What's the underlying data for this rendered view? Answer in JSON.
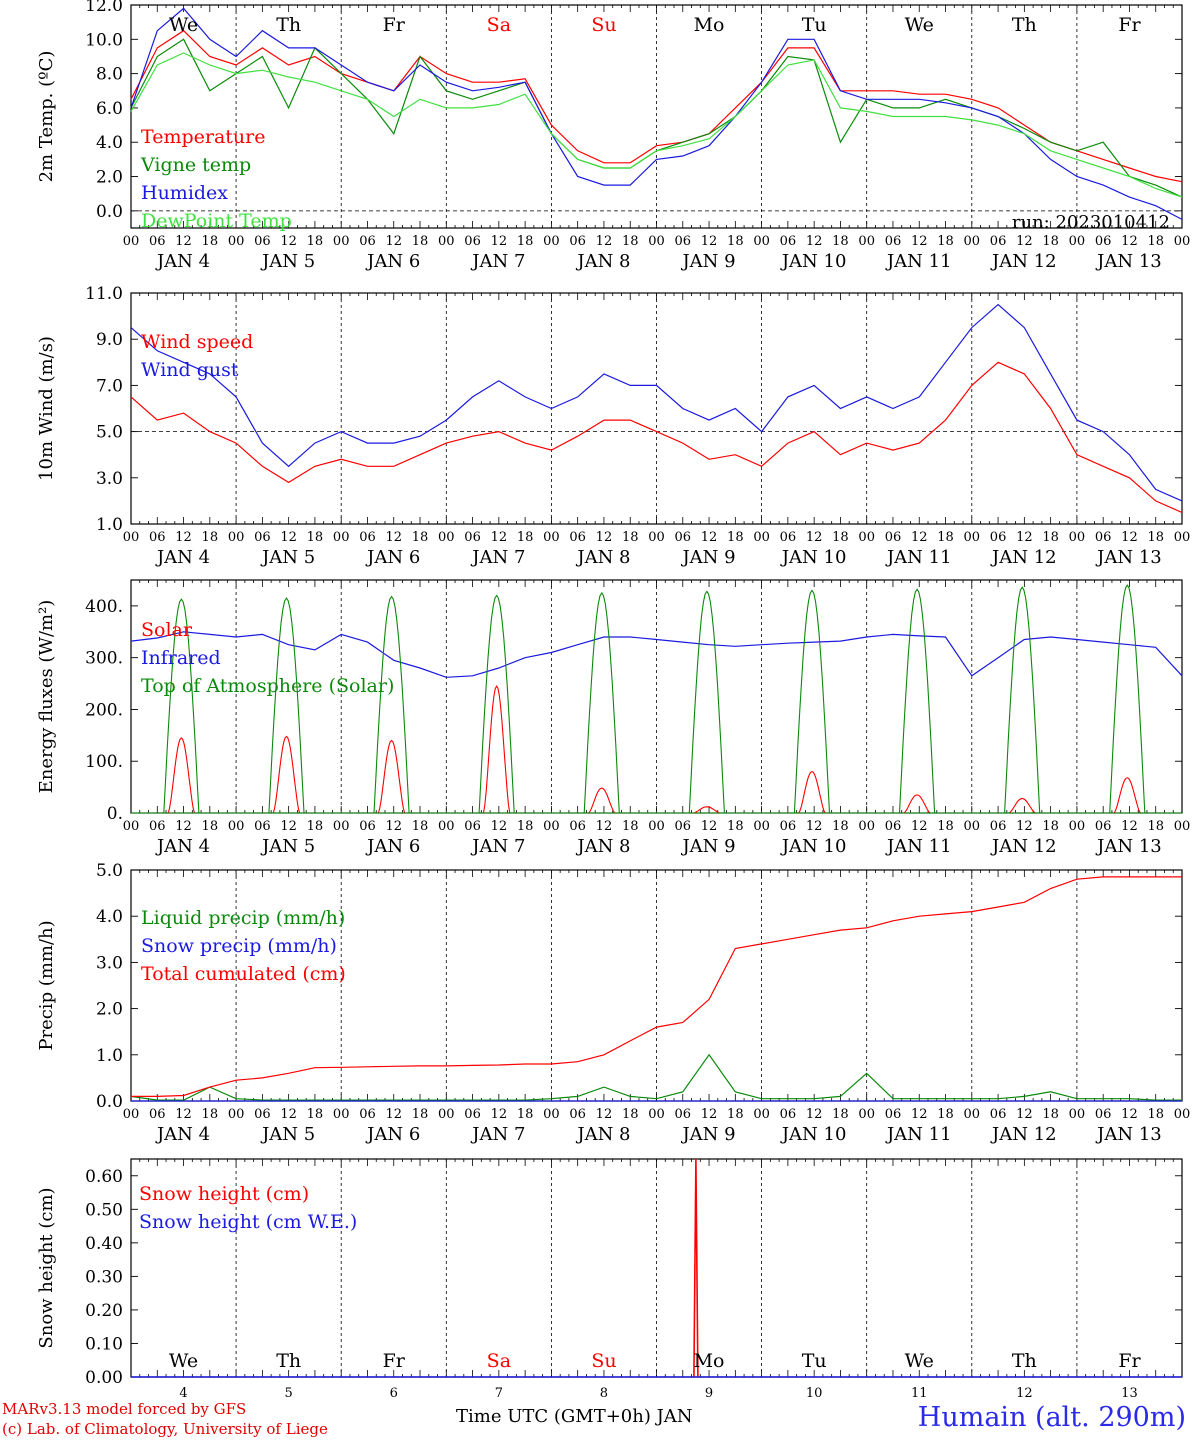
{
  "footer": {
    "model_line": "MARv3.13 model forced by GFS",
    "credit_line": "(c) Lab. of Climatology, University of Liege",
    "x_title": "Time UTC (GMT+0h) JAN",
    "station": "Humain (alt. 290m)"
  },
  "colors": {
    "red": "#ff0000",
    "green": "#0a8a0a",
    "blue": "#1a1ae0",
    "lightgreen": "#40e040",
    "weekend": "#ff0000",
    "weekday": "#000000"
  },
  "chart_data": [
    {
      "type": "line",
      "ylabel": "2m Temp. (ºC)",
      "ylim": [
        -1,
        12
      ],
      "yticks": [
        "12.0",
        "10.0",
        "8.0",
        "6.0",
        "4.0",
        "2.0",
        "0.0"
      ],
      "ytick_values": [
        12,
        10,
        8,
        6,
        4,
        2,
        0
      ],
      "reference_line": 0,
      "annotation": "run: 2023010412",
      "day_labels": [
        {
          "text": "We",
          "weekend": false
        },
        {
          "text": "Th",
          "weekend": false
        },
        {
          "text": "Fr",
          "weekend": false
        },
        {
          "text": "Sa",
          "weekend": true
        },
        {
          "text": "Su",
          "weekend": true
        },
        {
          "text": "Mo",
          "weekend": false
        },
        {
          "text": "Tu",
          "weekend": false
        },
        {
          "text": "We",
          "weekend": false
        },
        {
          "text": "Th",
          "weekend": false
        },
        {
          "text": "Fr",
          "weekend": false
        }
      ],
      "x_hours": [
        0,
        6,
        12,
        18,
        24,
        30,
        36,
        42,
        48,
        54,
        60,
        66,
        72,
        78,
        84,
        90,
        96,
        102,
        108,
        114,
        120,
        126,
        132,
        138,
        144,
        150,
        156,
        162,
        168,
        174,
        180,
        186,
        192,
        198,
        204,
        210,
        216,
        222,
        228,
        234,
        240
      ],
      "series": [
        {
          "name": "Temperature",
          "color": "red",
          "values": [
            6.5,
            9.5,
            10.5,
            9.0,
            8.5,
            9.5,
            8.5,
            9.0,
            8.0,
            7.5,
            7.0,
            9.0,
            8.0,
            7.5,
            7.5,
            7.7,
            5.0,
            3.5,
            2.8,
            2.8,
            3.8,
            4.0,
            4.5,
            6.0,
            7.5,
            9.5,
            9.5,
            7.0,
            7.0,
            7.0,
            6.8,
            6.8,
            6.5,
            6.0,
            5.0,
            4.0,
            3.5,
            3.0,
            2.5,
            2.0,
            1.7
          ]
        },
        {
          "name": "Vigne temp",
          "color": "green",
          "values": [
            6.0,
            9.0,
            10.0,
            7.0,
            8.0,
            9.0,
            6.0,
            9.5,
            8.0,
            6.5,
            4.5,
            9.0,
            7.0,
            6.5,
            7.0,
            7.5,
            4.5,
            3.0,
            2.5,
            2.5,
            3.5,
            4.0,
            4.5,
            5.5,
            7.0,
            9.0,
            8.8,
            4.0,
            6.5,
            6.0,
            6.0,
            6.5,
            6.0,
            5.5,
            4.8,
            4.0,
            3.5,
            4.0,
            2.0,
            1.5,
            0.8
          ]
        },
        {
          "name": "Humidex",
          "color": "blue",
          "values": [
            6.0,
            10.5,
            11.8,
            10.0,
            9.0,
            10.5,
            9.5,
            9.5,
            8.5,
            7.5,
            7.0,
            8.5,
            7.5,
            7.0,
            7.2,
            7.5,
            4.5,
            2.0,
            1.5,
            1.5,
            3.0,
            3.2,
            3.8,
            5.5,
            7.5,
            10.0,
            10.0,
            7.0,
            6.5,
            6.5,
            6.5,
            6.3,
            6.0,
            5.5,
            4.5,
            3.0,
            2.0,
            1.5,
            0.8,
            0.3,
            -0.5
          ]
        },
        {
          "name": "DewPoint Temp",
          "color": "lightgreen",
          "values": [
            5.8,
            8.5,
            9.2,
            8.5,
            8.0,
            8.2,
            7.8,
            7.5,
            7.0,
            6.5,
            5.5,
            6.5,
            6.0,
            6.0,
            6.2,
            6.8,
            4.5,
            3.0,
            2.5,
            2.5,
            3.5,
            3.8,
            4.2,
            5.5,
            7.0,
            8.5,
            8.8,
            6.0,
            5.8,
            5.5,
            5.5,
            5.5,
            5.3,
            5.0,
            4.5,
            3.5,
            3.0,
            2.5,
            2.0,
            1.3,
            0.8
          ]
        }
      ]
    },
    {
      "type": "line",
      "ylabel": "10m Wind (m/s)",
      "ylim": [
        1,
        11
      ],
      "yticks": [
        "11.0",
        "9.0",
        "7.0",
        "5.0",
        "3.0",
        "1.0"
      ],
      "ytick_values": [
        11,
        9,
        7,
        5,
        3,
        1
      ],
      "reference_line": 5,
      "x_hours": [
        0,
        6,
        12,
        18,
        24,
        30,
        36,
        42,
        48,
        54,
        60,
        66,
        72,
        78,
        84,
        90,
        96,
        102,
        108,
        114,
        120,
        126,
        132,
        138,
        144,
        150,
        156,
        162,
        168,
        174,
        180,
        186,
        192,
        198,
        204,
        210,
        216,
        222,
        228,
        234,
        240
      ],
      "series": [
        {
          "name": "Wind speed",
          "color": "red",
          "values": [
            6.5,
            5.5,
            5.8,
            5.0,
            4.5,
            3.5,
            2.8,
            3.5,
            3.8,
            3.5,
            3.5,
            4.0,
            4.5,
            4.8,
            5.0,
            4.5,
            4.2,
            4.8,
            5.5,
            5.5,
            5.0,
            4.5,
            3.8,
            4.0,
            3.5,
            4.5,
            5.0,
            4.0,
            4.5,
            4.2,
            4.5,
            5.5,
            7.0,
            8.0,
            7.5,
            6.0,
            4.0,
            3.5,
            3.0,
            2.0,
            1.5
          ]
        },
        {
          "name": "Wind gust",
          "color": "blue",
          "values": [
            9.5,
            8.5,
            8.0,
            7.5,
            6.5,
            4.5,
            3.5,
            4.5,
            5.0,
            4.5,
            4.5,
            4.8,
            5.5,
            6.5,
            7.2,
            6.5,
            6.0,
            6.5,
            7.5,
            7.0,
            7.0,
            6.0,
            5.5,
            6.0,
            5.0,
            6.5,
            7.0,
            6.0,
            6.5,
            6.0,
            6.5,
            8.0,
            9.5,
            10.5,
            9.5,
            7.5,
            5.5,
            5.0,
            4.0,
            2.5,
            2.0
          ]
        }
      ]
    },
    {
      "type": "line",
      "ylabel": "Energy fluxes (W/m²)",
      "ylim": [
        0,
        450
      ],
      "yticks": [
        "400.",
        "300.",
        "200.",
        "100.",
        "0."
      ],
      "ytick_values": [
        400,
        300,
        200,
        100,
        0
      ],
      "series": [
        {
          "name": "Solar",
          "color": "red",
          "peaks": [
            145,
            148,
            140,
            245,
            48,
            12,
            80,
            35,
            28,
            68
          ]
        },
        {
          "name": "Infrared",
          "color": "blue",
          "x_hours": [
            0,
            6,
            12,
            18,
            24,
            30,
            36,
            42,
            48,
            54,
            60,
            66,
            72,
            78,
            84,
            90,
            96,
            102,
            108,
            114,
            120,
            126,
            132,
            138,
            144,
            150,
            156,
            162,
            168,
            174,
            180,
            186,
            192,
            198,
            204,
            210,
            216,
            222,
            228,
            234,
            240
          ],
          "values": [
            332,
            338,
            350,
            345,
            340,
            345,
            325,
            315,
            345,
            330,
            295,
            280,
            262,
            265,
            280,
            300,
            310,
            325,
            340,
            340,
            335,
            330,
            325,
            322,
            325,
            328,
            330,
            332,
            340,
            345,
            342,
            340,
            265,
            300,
            335,
            340,
            335,
            330,
            325,
            320,
            265
          ]
        },
        {
          "name": "Top of Atmosphere (Solar)",
          "color": "green",
          "peaks": [
            413,
            415,
            418,
            420,
            425,
            428,
            430,
            432,
            436,
            440
          ]
        }
      ]
    },
    {
      "type": "line",
      "ylabel": "Precip (mm/h)",
      "ylim": [
        0,
        5
      ],
      "yticks": [
        "5.0",
        "4.0",
        "3.0",
        "2.0",
        "1.0",
        "0.0"
      ],
      "ytick_values": [
        5,
        4,
        3,
        2,
        1,
        0
      ],
      "x_hours": [
        0,
        6,
        12,
        18,
        24,
        30,
        36,
        42,
        48,
        54,
        60,
        66,
        72,
        78,
        84,
        90,
        96,
        102,
        108,
        114,
        120,
        126,
        132,
        138,
        144,
        150,
        156,
        162,
        168,
        174,
        180,
        186,
        192,
        198,
        204,
        210,
        216,
        222,
        228,
        234,
        240
      ],
      "series": [
        {
          "name": "Liquid precip (mm/h)",
          "color": "green",
          "values": [
            0.1,
            0.02,
            0.02,
            0.3,
            0.05,
            0.02,
            0.02,
            0.02,
            0.02,
            0.02,
            0.02,
            0.02,
            0.02,
            0.02,
            0.02,
            0.02,
            0.05,
            0.1,
            0.3,
            0.1,
            0.05,
            0.2,
            1.0,
            0.2,
            0.05,
            0.05,
            0.05,
            0.1,
            0.6,
            0.05,
            0.05,
            0.05,
            0.05,
            0.05,
            0.1,
            0.2,
            0.05,
            0.05,
            0.05,
            0.02,
            0.02
          ]
        },
        {
          "name": "Snow precip (mm/h)",
          "color": "blue",
          "values": [
            0,
            0,
            0,
            0,
            0,
            0,
            0,
            0,
            0,
            0,
            0,
            0,
            0,
            0,
            0,
            0,
            0,
            0,
            0,
            0,
            0,
            0,
            0,
            0,
            0,
            0,
            0,
            0,
            0,
            0,
            0,
            0,
            0,
            0,
            0,
            0,
            0,
            0,
            0,
            0,
            0
          ]
        },
        {
          "name": "Total cumulated (cm)",
          "color": "red",
          "values": [
            0.1,
            0.1,
            0.12,
            0.3,
            0.45,
            0.5,
            0.6,
            0.72,
            0.73,
            0.74,
            0.75,
            0.76,
            0.76,
            0.77,
            0.78,
            0.8,
            0.8,
            0.85,
            1.0,
            1.3,
            1.6,
            1.7,
            2.2,
            3.3,
            3.4,
            3.5,
            3.6,
            3.7,
            3.75,
            3.9,
            4.0,
            4.05,
            4.1,
            4.2,
            4.3,
            4.6,
            4.8,
            4.85,
            4.85,
            4.85,
            4.85
          ]
        }
      ]
    },
    {
      "type": "line",
      "ylabel": "Snow height (cm)",
      "ylim": [
        0,
        0.65
      ],
      "yticks": [
        "0.60",
        "0.50",
        "0.40",
        "0.30",
        "0.20",
        "0.10",
        "0.00"
      ],
      "ytick_values": [
        0.6,
        0.5,
        0.4,
        0.3,
        0.2,
        0.1,
        0.0
      ],
      "day_labels": [
        {
          "text": "We",
          "weekend": false
        },
        {
          "text": "Th",
          "weekend": false
        },
        {
          "text": "Fr",
          "weekend": false
        },
        {
          "text": "Sa",
          "weekend": true
        },
        {
          "text": "Su",
          "weekend": true
        },
        {
          "text": "Mo",
          "weekend": false
        },
        {
          "text": "Tu",
          "weekend": false
        },
        {
          "text": "We",
          "weekend": false
        },
        {
          "text": "Th",
          "weekend": false
        },
        {
          "text": "Fr",
          "weekend": false
        }
      ],
      "day_numbers": [
        "4",
        "5",
        "6",
        "7",
        "8",
        "9",
        "10",
        "11",
        "12",
        "13"
      ],
      "series": [
        {
          "name": "Snow height (cm)",
          "color": "red",
          "spike": {
            "x_hour": 129,
            "value": 0.65
          }
        },
        {
          "name": "Snow height (cm W.E.)",
          "color": "blue",
          "values": [
            0
          ]
        }
      ]
    }
  ],
  "hour_tick_labels": [
    "00",
    "06",
    "12",
    "18"
  ],
  "date_labels": [
    "JAN 4",
    "JAN 5",
    "JAN 6",
    "JAN 7",
    "JAN 8",
    "JAN 9",
    "JAN 10",
    "JAN 11",
    "JAN 12",
    "JAN 13"
  ]
}
